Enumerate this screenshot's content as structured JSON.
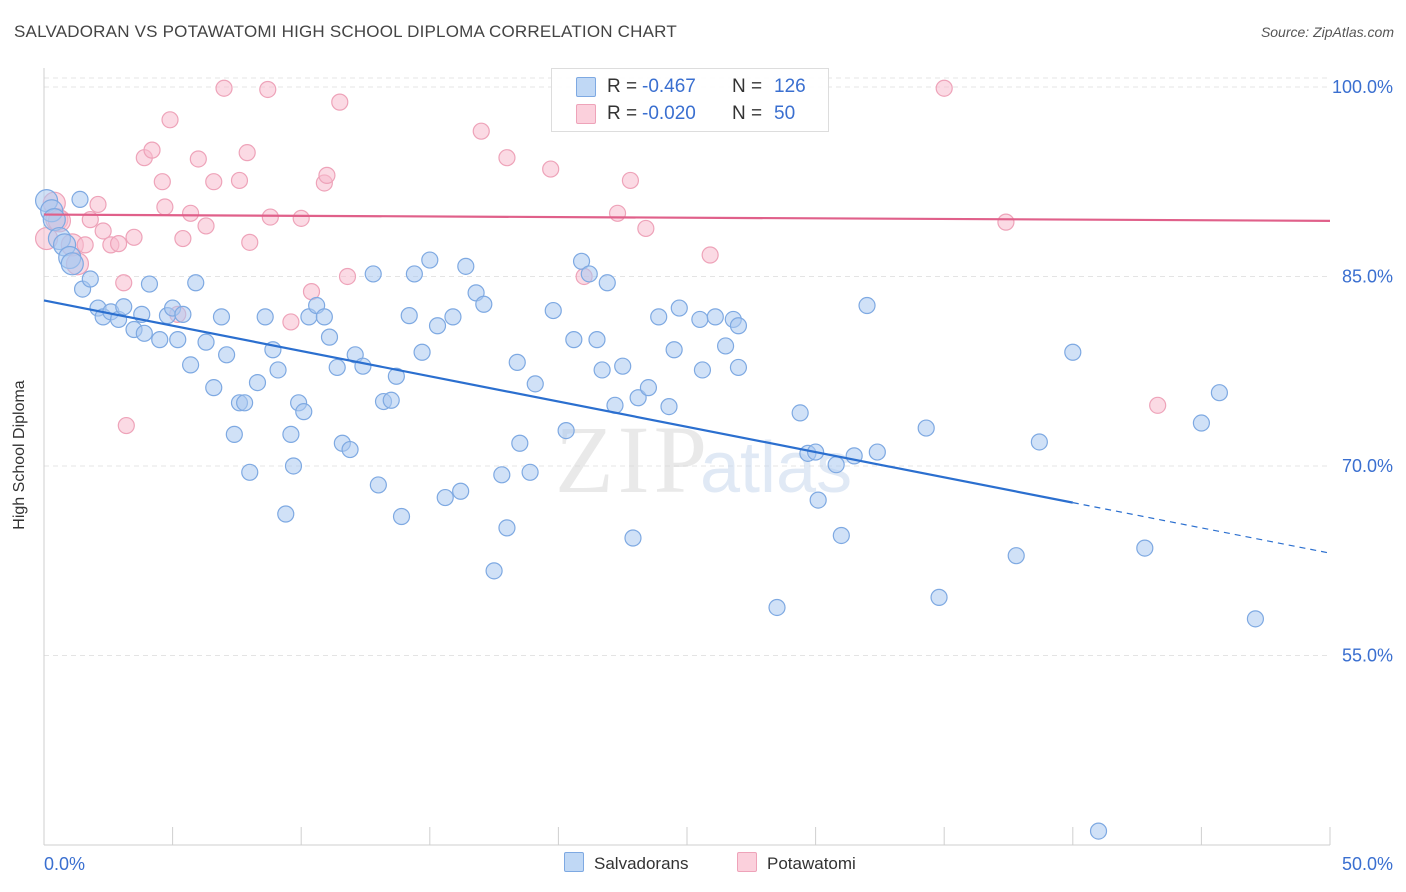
{
  "title": "SALVADORAN VS POTAWATOMI HIGH SCHOOL DIPLOMA CORRELATION CHART",
  "source": "Source: ZipAtlas.com",
  "watermark": {
    "zip": "ZIP",
    "atlas": "atlas"
  },
  "stats": [
    {
      "r_label": "R =",
      "r_value": "-0.467",
      "n_label": "N =",
      "n_value": "126"
    },
    {
      "r_label": "R =",
      "r_value": "-0.020",
      "n_label": "N =",
      "n_value": "50"
    }
  ],
  "legend": [
    {
      "label": "Salvadorans"
    },
    {
      "label": "Potawatomi"
    }
  ],
  "colors": {
    "salvadoran_fill": "#a9c8f0",
    "salvadoran_stroke": "#7ea9e2",
    "salvadoran_line": "#2b6fcf",
    "potawatomi_fill": "#f8bccd",
    "potawatomi_stroke": "#eea3b9",
    "potawatomi_line": "#e0608a",
    "tick_label": "#3a6fd0",
    "grid": "#e4e4e4"
  },
  "chart_data": {
    "type": "scatter",
    "title": "SALVADORAN VS POTAWATOMI HIGH SCHOOL DIPLOMA CORRELATION CHART",
    "xlabel": "",
    "ylabel": "High School Diploma",
    "xlim": [
      0,
      50
    ],
    "ylim": [
      40,
      101.5
    ],
    "x_tick_labels": [
      {
        "value": 0,
        "label": "0.0%"
      },
      {
        "value": 50,
        "label": "50.0%"
      }
    ],
    "y_ticks": [
      {
        "value": 100,
        "label": "100.0%"
      },
      {
        "value": 85,
        "label": "85.0%"
      },
      {
        "value": 70,
        "label": "70.0%"
      },
      {
        "value": 55,
        "label": "55.0%"
      }
    ],
    "x_minor_ticks": [
      0,
      5,
      10,
      15,
      20,
      25,
      30,
      35,
      40,
      45,
      50
    ],
    "grid": true,
    "legend_position": "bottom-center",
    "series": [
      {
        "name": "Salvadorans",
        "trend": {
          "x0": 0,
          "y0": 83.1,
          "x1": 40,
          "y1": 67.1,
          "dashed_to_x": 50,
          "dashed_to_y": 63.1
        },
        "points": [
          [
            0.1,
            91.0
          ],
          [
            0.3,
            90.2
          ],
          [
            0.4,
            89.5
          ],
          [
            0.6,
            88.0
          ],
          [
            0.8,
            87.5
          ],
          [
            1.0,
            86.5
          ],
          [
            1.1,
            86.0
          ],
          [
            1.5,
            84.0
          ],
          [
            1.8,
            84.8
          ],
          [
            2.1,
            82.5
          ],
          [
            2.3,
            81.8
          ],
          [
            2.6,
            82.2
          ],
          [
            2.9,
            81.6
          ],
          [
            3.1,
            82.6
          ],
          [
            3.5,
            80.8
          ],
          [
            3.9,
            80.5
          ],
          [
            4.1,
            84.4
          ],
          [
            4.5,
            80.0
          ],
          [
            4.8,
            81.9
          ],
          [
            5.0,
            82.5
          ],
          [
            5.2,
            80.0
          ],
          [
            5.4,
            82.0
          ],
          [
            5.7,
            78.0
          ],
          [
            5.9,
            84.5
          ],
          [
            6.3,
            79.8
          ],
          [
            6.6,
            76.2
          ],
          [
            6.9,
            81.8
          ],
          [
            7.1,
            78.8
          ],
          [
            7.4,
            72.5
          ],
          [
            7.6,
            75.0
          ],
          [
            7.8,
            75.0
          ],
          [
            8.0,
            69.5
          ],
          [
            8.3,
            76.6
          ],
          [
            8.6,
            81.8
          ],
          [
            8.9,
            79.2
          ],
          [
            9.1,
            77.6
          ],
          [
            9.4,
            66.2
          ],
          [
            9.6,
            72.5
          ],
          [
            9.9,
            75.0
          ],
          [
            10.1,
            74.3
          ],
          [
            10.3,
            81.8
          ],
          [
            10.6,
            82.7
          ],
          [
            10.9,
            81.8
          ],
          [
            11.1,
            80.2
          ],
          [
            11.4,
            77.8
          ],
          [
            11.6,
            71.8
          ],
          [
            11.9,
            71.3
          ],
          [
            12.1,
            78.8
          ],
          [
            12.4,
            77.9
          ],
          [
            12.8,
            85.2
          ],
          [
            13.0,
            68.5
          ],
          [
            13.2,
            75.1
          ],
          [
            13.5,
            75.2
          ],
          [
            13.7,
            77.1
          ],
          [
            13.9,
            66.0
          ],
          [
            14.2,
            81.9
          ],
          [
            14.4,
            85.2
          ],
          [
            14.7,
            79.0
          ],
          [
            15.0,
            86.3
          ],
          [
            15.3,
            81.1
          ],
          [
            15.6,
            67.5
          ],
          [
            15.9,
            81.8
          ],
          [
            16.2,
            68.0
          ],
          [
            16.4,
            85.8
          ],
          [
            16.8,
            83.7
          ],
          [
            17.1,
            82.8
          ],
          [
            17.5,
            61.7
          ],
          [
            17.8,
            69.3
          ],
          [
            18.0,
            65.1
          ],
          [
            18.4,
            78.2
          ],
          [
            18.5,
            71.8
          ],
          [
            18.9,
            69.5
          ],
          [
            19.1,
            76.5
          ],
          [
            19.8,
            82.3
          ],
          [
            20.3,
            72.8
          ],
          [
            20.6,
            80.0
          ],
          [
            20.9,
            86.2
          ],
          [
            21.2,
            85.2
          ],
          [
            21.5,
            80.0
          ],
          [
            21.7,
            77.6
          ],
          [
            21.9,
            84.5
          ],
          [
            22.2,
            74.8
          ],
          [
            22.9,
            64.3
          ],
          [
            22.5,
            77.9
          ],
          [
            23.1,
            75.4
          ],
          [
            23.5,
            76.2
          ],
          [
            23.9,
            81.8
          ],
          [
            24.3,
            74.7
          ],
          [
            24.5,
            79.2
          ],
          [
            24.7,
            82.5
          ],
          [
            25.5,
            81.6
          ],
          [
            25.6,
            77.6
          ],
          [
            26.1,
            81.8
          ],
          [
            26.5,
            79.5
          ],
          [
            26.8,
            81.6
          ],
          [
            27.0,
            81.1
          ],
          [
            27.0,
            77.8
          ],
          [
            28.5,
            58.8
          ],
          [
            29.4,
            74.2
          ],
          [
            29.7,
            71.0
          ],
          [
            30.0,
            71.1
          ],
          [
            30.1,
            67.3
          ],
          [
            30.8,
            70.1
          ],
          [
            31.0,
            64.5
          ],
          [
            31.5,
            70.8
          ],
          [
            32.0,
            82.7
          ],
          [
            32.4,
            71.1
          ],
          [
            34.3,
            73.0
          ],
          [
            34.8,
            59.6
          ],
          [
            37.8,
            62.9
          ],
          [
            38.7,
            71.9
          ],
          [
            40.0,
            79.0
          ],
          [
            41.0,
            41.1
          ],
          [
            42.8,
            63.5
          ],
          [
            45.0,
            73.4
          ],
          [
            45.7,
            75.8
          ],
          [
            47.1,
            57.9
          ],
          [
            1.4,
            91.1
          ],
          [
            3.8,
            82.0
          ],
          [
            9.7,
            70.0
          ]
        ]
      },
      {
        "name": "Potawatomi",
        "trend": {
          "x0": 0,
          "y0": 89.9,
          "x1": 50,
          "y1": 89.4
        },
        "points": [
          [
            0.1,
            88.0
          ],
          [
            0.4,
            90.8
          ],
          [
            0.5,
            89.5
          ],
          [
            0.6,
            89.4
          ],
          [
            1.1,
            87.5
          ],
          [
            1.3,
            86.0
          ],
          [
            1.6,
            87.5
          ],
          [
            1.8,
            89.5
          ],
          [
            2.1,
            90.7
          ],
          [
            2.3,
            88.6
          ],
          [
            2.6,
            87.5
          ],
          [
            2.9,
            87.6
          ],
          [
            3.1,
            84.5
          ],
          [
            3.2,
            73.2
          ],
          [
            3.5,
            88.1
          ],
          [
            3.9,
            94.4
          ],
          [
            4.2,
            95.0
          ],
          [
            4.6,
            92.5
          ],
          [
            4.7,
            90.5
          ],
          [
            4.9,
            97.4
          ],
          [
            5.2,
            82.0
          ],
          [
            5.4,
            88.0
          ],
          [
            5.7,
            90.0
          ],
          [
            6.0,
            94.3
          ],
          [
            6.3,
            89.0
          ],
          [
            6.6,
            92.5
          ],
          [
            7.0,
            99.9
          ],
          [
            7.6,
            92.6
          ],
          [
            7.9,
            94.8
          ],
          [
            8.0,
            87.7
          ],
          [
            8.7,
            99.8
          ],
          [
            8.8,
            89.7
          ],
          [
            9.6,
            81.4
          ],
          [
            10.0,
            89.6
          ],
          [
            10.4,
            83.8
          ],
          [
            10.9,
            92.4
          ],
          [
            11.0,
            93.0
          ],
          [
            11.5,
            98.8
          ],
          [
            11.8,
            85.0
          ],
          [
            17.0,
            96.5
          ],
          [
            18.0,
            94.4
          ],
          [
            19.7,
            93.5
          ],
          [
            21.0,
            85.0
          ],
          [
            22.3,
            90.0
          ],
          [
            22.8,
            92.6
          ],
          [
            23.4,
            88.8
          ],
          [
            25.9,
            86.7
          ],
          [
            35.0,
            99.9
          ],
          [
            37.4,
            89.3
          ],
          [
            43.3,
            74.8
          ]
        ]
      }
    ]
  }
}
